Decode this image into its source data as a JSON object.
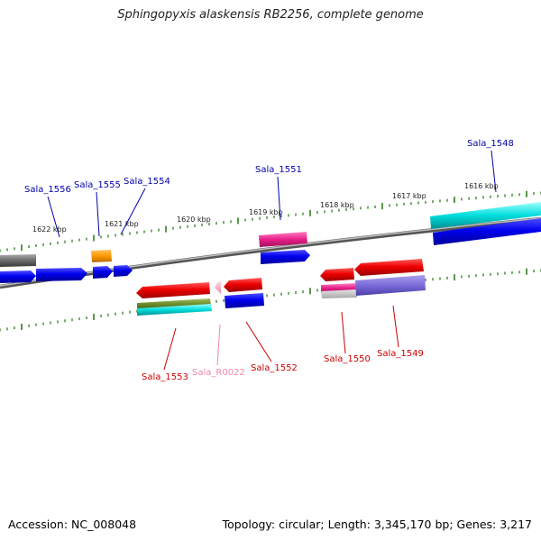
{
  "title": "Sphingopyxis alaskensis RB2256, complete genome",
  "footer": {
    "accession": "Accession: NC_008048",
    "summary": "Topology: circular; Length: 3,345,170 bp; Genes: 3,217"
  },
  "colors": {
    "backbone": "#7a7a7a",
    "tick": "#2e7d1e",
    "forward_label": "#0000aa",
    "reverse_label": "#cc0000",
    "rna_label": "#ee88aa"
  },
  "kbp_labels": [
    "1622 kbp",
    "1621 kbp",
    "1620 kbp",
    "1619 kbp",
    "1618 kbp",
    "1617 kbp",
    "1616 kbp"
  ],
  "gene_labels": {
    "forward": [
      "Sala_1556",
      "Sala_1555",
      "Sala_1554",
      "Sala_1551",
      "Sala_1548"
    ],
    "reverse": [
      "Sala_1553",
      "Sala_R0022",
      "Sala_1552",
      "Sala_1550",
      "Sala_1549"
    ]
  }
}
